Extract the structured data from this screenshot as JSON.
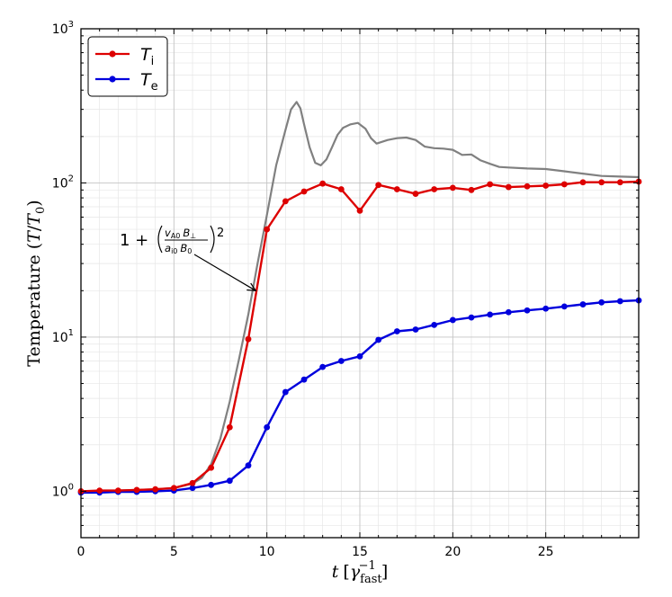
{
  "chart_data": {
    "type": "line",
    "title": "",
    "xlabel": {
      "main": "t",
      "unit_base": "γ",
      "unit_sub": "fast",
      "unit_sup": "−1"
    },
    "ylabel": {
      "main": "Temperature (",
      "var": "T",
      "sep": "/",
      "var2": "T",
      "var2_sub": "0",
      "close": ")"
    },
    "xlim": [
      0,
      30
    ],
    "ylim": [
      0.5,
      1000
    ],
    "yscale": "log",
    "x_ticks": [
      0,
      5,
      10,
      15,
      20,
      25
    ],
    "x_tick_labels": [
      "0",
      "5",
      "10",
      "15",
      "20",
      "25"
    ],
    "y_ticks": [
      {
        "value": 1,
        "base": "10",
        "exp": "0"
      },
      {
        "value": 10,
        "base": "10",
        "exp": "1"
      },
      {
        "value": 100,
        "base": "10",
        "exp": "2"
      },
      {
        "value": 1000,
        "base": "10",
        "exp": "3"
      }
    ],
    "grid": true,
    "legend_position": "top-left",
    "series": [
      {
        "name": "T",
        "name_sub": "i",
        "color": "#dd0000",
        "markers": true,
        "x": [
          0,
          1,
          2,
          3,
          4,
          5,
          6,
          7,
          8,
          9,
          10,
          11,
          12,
          13,
          14,
          15,
          16,
          17,
          18,
          19,
          20,
          21,
          22,
          23,
          24,
          25,
          26,
          27,
          28,
          29,
          30
        ],
        "y": [
          1.0,
          1.01,
          1.01,
          1.02,
          1.03,
          1.05,
          1.13,
          1.42,
          2.6,
          9.7,
          50,
          76,
          88,
          99,
          91,
          66,
          97,
          91,
          85,
          91,
          93,
          90,
          98,
          94,
          95,
          96,
          98,
          101,
          101,
          101,
          102
        ]
      },
      {
        "name": "T",
        "name_sub": "e",
        "color": "#0000dd",
        "markers": true,
        "x": [
          0,
          1,
          2,
          3,
          4,
          5,
          6,
          7,
          8,
          9,
          10,
          11,
          12,
          13,
          14,
          15,
          16,
          17,
          18,
          19,
          20,
          21,
          22,
          23,
          24,
          25,
          26,
          27,
          28,
          29,
          30
        ],
        "y": [
          0.98,
          0.98,
          0.99,
          0.99,
          1.0,
          1.01,
          1.05,
          1.1,
          1.17,
          1.47,
          2.6,
          4.4,
          5.3,
          6.4,
          7.0,
          7.5,
          9.6,
          10.9,
          11.2,
          12.0,
          12.9,
          13.4,
          14.0,
          14.5,
          14.9,
          15.3,
          15.8,
          16.3,
          16.8,
          17.1,
          17.3
        ]
      },
      {
        "name": "",
        "color": "#808080",
        "markers": false,
        "x": [
          0,
          1,
          2,
          3,
          4,
          5,
          6,
          6.5,
          7,
          7.5,
          8,
          8.5,
          9,
          9.5,
          10,
          10.5,
          11,
          11.3,
          11.6,
          11.8,
          12,
          12.3,
          12.6,
          12.9,
          13.2,
          13.5,
          13.8,
          14.1,
          14.5,
          14.9,
          15.3,
          15.6,
          15.9,
          16.2,
          16.5,
          17,
          17.5,
          18,
          18.5,
          19,
          19.5,
          20,
          20.5,
          21,
          21.5,
          22,
          22.5,
          23,
          24,
          25,
          26,
          27,
          28,
          29,
          30
        ],
        "y": [
          1.0,
          1.0,
          1.01,
          1.02,
          1.03,
          1.05,
          1.12,
          1.22,
          1.5,
          2.2,
          3.8,
          7.2,
          14,
          30,
          62,
          130,
          220,
          300,
          335,
          305,
          240,
          170,
          135,
          130,
          142,
          170,
          205,
          228,
          240,
          245,
          225,
          195,
          180,
          185,
          190,
          195,
          197,
          190,
          172,
          168,
          167,
          164,
          152,
          153,
          140,
          133,
          127,
          126,
          124,
          123,
          119,
          115,
          111,
          110,
          109
        ]
      }
    ],
    "annotation": {
      "prefix": "1 + ",
      "num_a": "v",
      "num_a_sub": "A0",
      "num_b": "B",
      "num_b_sub": "⊥",
      "den_a": "a",
      "den_a_sub": "i0",
      "den_b": "B",
      "den_b_sub": "0",
      "power": "2",
      "arrow_to": {
        "x": 9.4,
        "y": 20
      }
    }
  }
}
